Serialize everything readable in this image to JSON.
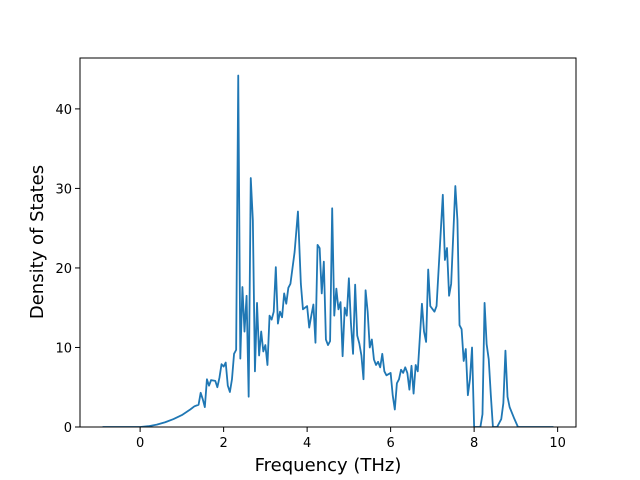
{
  "chart_data": {
    "type": "line",
    "xlabel": "Frequency (THz)",
    "ylabel": "Density of States",
    "color": "#1f77b4",
    "xlim": [
      -1.44,
      10.44
    ],
    "ylim": [
      0,
      46.4
    ],
    "xticks": [
      0,
      2,
      4,
      6,
      8,
      10
    ],
    "yticks": [
      0,
      10,
      20,
      30,
      40
    ],
    "x": [
      -0.9,
      -0.5,
      0,
      0.2,
      0.4,
      0.6,
      0.8,
      1.0,
      1.2,
      1.3,
      1.4,
      1.45,
      1.5,
      1.55,
      1.6,
      1.65,
      1.7,
      1.8,
      1.85,
      1.9,
      1.95,
      2.0,
      2.05,
      2.1,
      2.15,
      2.2,
      2.25,
      2.3,
      2.35,
      2.4,
      2.45,
      2.5,
      2.55,
      2.6,
      2.65,
      2.7,
      2.75,
      2.8,
      2.85,
      2.9,
      2.95,
      3.0,
      3.05,
      3.1,
      3.15,
      3.2,
      3.25,
      3.3,
      3.35,
      3.4,
      3.45,
      3.5,
      3.55,
      3.6,
      3.7,
      3.78,
      3.85,
      3.9,
      4.0,
      4.05,
      4.1,
      4.15,
      4.2,
      4.25,
      4.3,
      4.35,
      4.4,
      4.45,
      4.5,
      4.55,
      4.6,
      4.65,
      4.7,
      4.75,
      4.8,
      4.85,
      4.9,
      4.95,
      5.0,
      5.05,
      5.1,
      5.15,
      5.2,
      5.25,
      5.3,
      5.35,
      5.4,
      5.45,
      5.5,
      5.55,
      5.6,
      5.65,
      5.7,
      5.75,
      5.8,
      5.85,
      5.9,
      6.0,
      6.05,
      6.1,
      6.15,
      6.2,
      6.25,
      6.3,
      6.35,
      6.4,
      6.45,
      6.5,
      6.55,
      6.6,
      6.65,
      6.75,
      6.8,
      6.85,
      6.9,
      6.95,
      7.05,
      7.1,
      7.25,
      7.3,
      7.35,
      7.4,
      7.45,
      7.55,
      7.6,
      7.65,
      7.7,
      7.75,
      7.8,
      7.85,
      7.9,
      7.95,
      8.0,
      8.15,
      8.2,
      8.25,
      8.3,
      8.35,
      8.4,
      8.45,
      8.55,
      8.65,
      8.7,
      8.75,
      8.8,
      8.85,
      8.95,
      9.05,
      9.9
    ],
    "values": [
      0,
      0,
      0,
      0.1,
      0.3,
      0.6,
      1.0,
      1.5,
      2.2,
      2.6,
      2.8,
      4.3,
      3.5,
      2.5,
      6.0,
      5.2,
      5.9,
      5.8,
      5.0,
      6.2,
      7.9,
      7.6,
      8.1,
      5.2,
      4.4,
      6.0,
      9.2,
      9.7,
      44.2,
      8.6,
      17.6,
      12.0,
      16.5,
      3.8,
      31.3,
      26.0,
      7.0,
      15.6,
      9.0,
      12.0,
      9.5,
      10.3,
      7.8,
      14.0,
      13.5,
      14.5,
      20.1,
      13.0,
      14.5,
      13.8,
      16.8,
      15.5,
      17.5,
      18.0,
      22.0,
      27.1,
      18.0,
      14.8,
      15.2,
      12.5,
      14.0,
      15.4,
      10.6,
      22.9,
      22.5,
      16.8,
      20.8,
      11.0,
      10.3,
      10.8,
      27.5,
      14.0,
      17.4,
      14.8,
      15.7,
      8.9,
      15.0,
      14.0,
      18.7,
      13.0,
      9.2,
      17.9,
      11.5,
      10.5,
      9.0,
      6.0,
      17.2,
      14.5,
      10.0,
      11.0,
      8.5,
      7.8,
      8.2,
      7.5,
      9.2,
      7.0,
      6.5,
      6.8,
      4.0,
      2.2,
      5.5,
      6.0,
      7.2,
      6.8,
      7.5,
      6.8,
      4.7,
      7.7,
      4.2,
      7.8,
      7.0,
      15.5,
      12.0,
      10.7,
      19.8,
      15.2,
      14.5,
      15.2,
      29.2,
      21.0,
      22.5,
      16.5,
      18.0,
      30.3,
      26.0,
      12.8,
      12.3,
      8.3,
      9.8,
      4.0,
      6.0,
      10.0,
      0,
      0,
      1.6,
      15.6,
      10.4,
      8.5,
      4.0,
      0,
      0,
      1.0,
      3.0,
      9.6,
      3.8,
      2.5,
      1.2,
      0,
      0
    ]
  }
}
